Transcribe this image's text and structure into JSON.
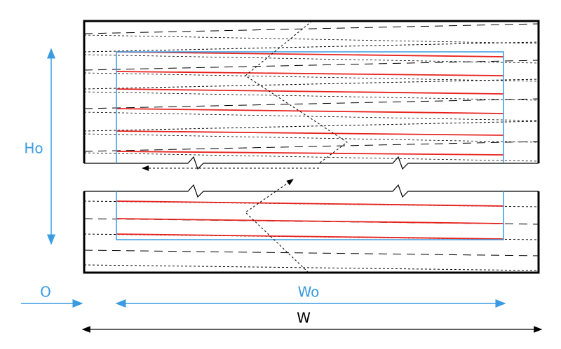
{
  "labels": {
    "height_label": "Ho",
    "offset_label": "O",
    "width_offset_label": "Wo",
    "width_label": "W"
  }
}
